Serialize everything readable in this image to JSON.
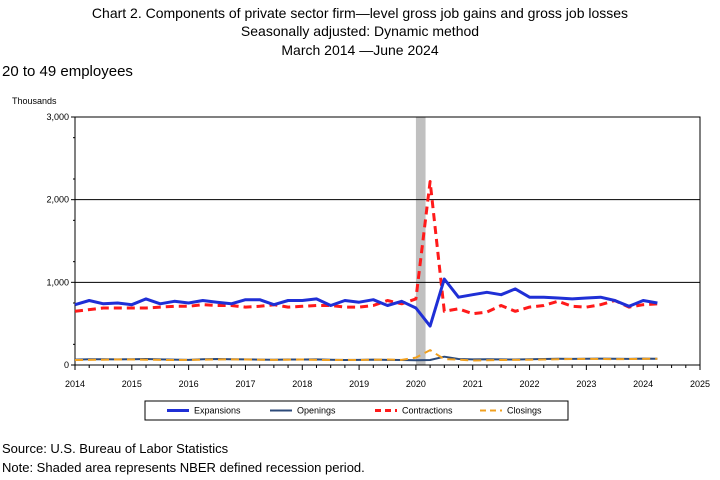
{
  "chart_data": {
    "type": "line",
    "title_lines": [
      "Chart 2. Components of private sector firm—level gross job gains and gross job losses",
      "Seasonally adjusted: Dynamic method",
      "March 2014 —June 2024"
    ],
    "subtitle": "20 to 49 employees",
    "ylabel": "Thousands",
    "xlabel": "",
    "ylim": [
      0,
      3000
    ],
    "xlim": [
      2014,
      2025
    ],
    "yticks": [
      "0",
      "1,000",
      "2,000",
      "3,000"
    ],
    "xticks": [
      "2014",
      "2015",
      "2016",
      "2017",
      "2018",
      "2019",
      "2020",
      "2021",
      "2022",
      "2023",
      "2024",
      "2025"
    ],
    "grid": "horizontal",
    "legend_position": "bottom",
    "recession_shading": [
      2020.0,
      2020.17
    ],
    "recession_color": "#c0c0c0",
    "series": [
      {
        "name": "Expansions",
        "style": "solid",
        "width": 3,
        "color": "#1f2fd6",
        "x": [
          2014.0,
          2014.25,
          2014.5,
          2014.75,
          2015.0,
          2015.25,
          2015.5,
          2015.75,
          2016.0,
          2016.25,
          2016.5,
          2016.75,
          2017.0,
          2017.25,
          2017.5,
          2017.75,
          2018.0,
          2018.25,
          2018.5,
          2018.75,
          2019.0,
          2019.25,
          2019.5,
          2019.75,
          2020.0,
          2020.25,
          2020.5,
          2020.75,
          2021.0,
          2021.25,
          2021.5,
          2021.75,
          2022.0,
          2022.25,
          2022.5,
          2022.75,
          2023.0,
          2023.25,
          2023.5,
          2023.75,
          2024.0,
          2024.25
        ],
        "values": [
          730,
          780,
          740,
          750,
          730,
          800,
          740,
          770,
          750,
          780,
          760,
          740,
          790,
          790,
          730,
          780,
          780,
          800,
          720,
          780,
          760,
          790,
          720,
          770,
          690,
          470,
          1040,
          820,
          850,
          880,
          850,
          920,
          820,
          820,
          810,
          800,
          810,
          820,
          780,
          710,
          780,
          750
        ]
      },
      {
        "name": "Openings",
        "style": "solid",
        "width": 2,
        "color": "#2c4a7a",
        "x": [
          2014.0,
          2014.25,
          2014.5,
          2014.75,
          2015.0,
          2015.25,
          2015.5,
          2015.75,
          2016.0,
          2016.25,
          2016.5,
          2016.75,
          2017.0,
          2017.25,
          2017.5,
          2017.75,
          2018.0,
          2018.25,
          2018.5,
          2018.75,
          2019.0,
          2019.25,
          2019.5,
          2019.75,
          2020.0,
          2020.25,
          2020.5,
          2020.75,
          2021.0,
          2021.25,
          2021.5,
          2021.75,
          2022.0,
          2022.25,
          2022.5,
          2022.75,
          2023.0,
          2023.25,
          2023.5,
          2023.75,
          2024.0,
          2024.25
        ],
        "values": [
          65,
          70,
          70,
          68,
          70,
          72,
          68,
          65,
          62,
          70,
          72,
          70,
          68,
          65,
          64,
          66,
          66,
          68,
          64,
          60,
          62,
          65,
          62,
          60,
          58,
          60,
          100,
          72,
          68,
          70,
          68,
          66,
          70,
          72,
          75,
          74,
          76,
          78,
          76,
          74,
          78,
          76
        ]
      },
      {
        "name": "Contractions",
        "style": "dashed",
        "width": 3,
        "color": "#ff1a1a",
        "x": [
          2014.0,
          2014.25,
          2014.5,
          2014.75,
          2015.0,
          2015.25,
          2015.5,
          2015.75,
          2016.0,
          2016.25,
          2016.5,
          2016.75,
          2017.0,
          2017.25,
          2017.5,
          2017.75,
          2018.0,
          2018.25,
          2018.5,
          2018.75,
          2019.0,
          2019.25,
          2019.5,
          2019.75,
          2020.0,
          2020.25,
          2020.5,
          2020.75,
          2021.0,
          2021.25,
          2021.5,
          2021.75,
          2022.0,
          2022.25,
          2022.5,
          2022.75,
          2023.0,
          2023.25,
          2023.5,
          2023.75,
          2024.0,
          2024.25
        ],
        "values": [
          650,
          670,
          690,
          690,
          690,
          690,
          700,
          710,
          710,
          730,
          720,
          720,
          700,
          710,
          730,
          700,
          710,
          720,
          720,
          700,
          700,
          720,
          780,
          740,
          800,
          2220,
          650,
          680,
          620,
          640,
          720,
          650,
          700,
          720,
          770,
          710,
          700,
          730,
          780,
          700,
          730,
          740
        ]
      },
      {
        "name": "Closings",
        "style": "dashed",
        "width": 2,
        "color": "#f0a020",
        "x": [
          2014.0,
          2014.25,
          2014.5,
          2014.75,
          2015.0,
          2015.25,
          2015.5,
          2015.75,
          2016.0,
          2016.25,
          2016.5,
          2016.75,
          2017.0,
          2017.25,
          2017.5,
          2017.75,
          2018.0,
          2018.25,
          2018.5,
          2018.75,
          2019.0,
          2019.25,
          2019.5,
          2019.75,
          2020.0,
          2020.25,
          2020.5,
          2020.75,
          2021.0,
          2021.25,
          2021.5,
          2021.75,
          2022.0,
          2022.25,
          2022.5,
          2022.75,
          2023.0,
          2023.25,
          2023.5,
          2023.75,
          2024.0,
          2024.25
        ],
        "values": [
          60,
          62,
          64,
          66,
          66,
          64,
          62,
          60,
          62,
          64,
          66,
          68,
          66,
          64,
          62,
          64,
          66,
          62,
          60,
          62,
          60,
          64,
          66,
          62,
          90,
          180,
          70,
          65,
          55,
          58,
          60,
          62,
          64,
          66,
          70,
          72,
          74,
          72,
          70,
          72,
          74,
          76
        ]
      }
    ]
  },
  "footer": {
    "source": "Source: U.S. Bureau of Labor Statistics",
    "note": "Note: Shaded area represents NBER defined recession period."
  }
}
